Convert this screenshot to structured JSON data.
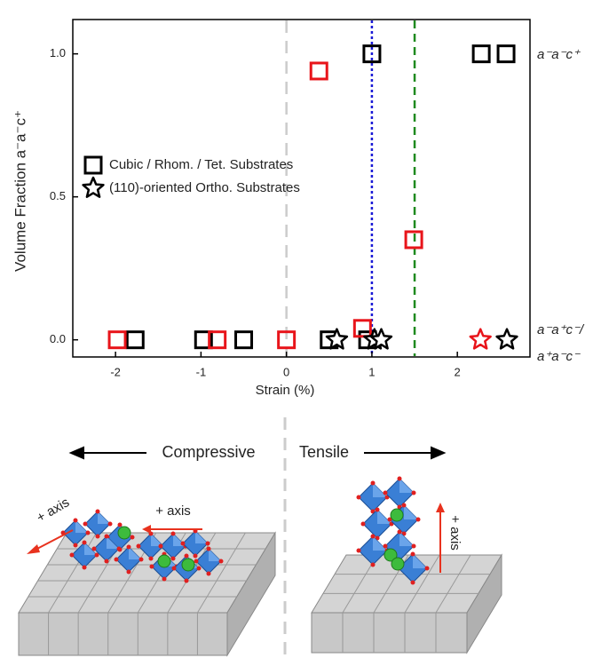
{
  "chart_data": {
    "type": "scatter",
    "x_label": "Strain (%)",
    "y_label": "Volume Fraction a⁻a⁻c⁺",
    "xlim": [
      -2.5,
      2.85
    ],
    "ylim": [
      -0.06,
      1.12
    ],
    "xticks": [
      -2,
      -1,
      0,
      1,
      2
    ],
    "yticks": [
      {
        "value": 0,
        "label": "0.0"
      },
      {
        "value": 0.5,
        "label": "0.5"
      },
      {
        "value": 1,
        "label": "1.0"
      }
    ],
    "series": [
      {
        "name": "Cubic / Rhom. / Tet. Substrates",
        "marker": "square",
        "color": "#000000",
        "x": [
          -1.77,
          -0.97,
          -0.5,
          0.5,
          0.95,
          1.0,
          2.28,
          2.57
        ],
        "values": [
          0,
          0,
          0,
          0,
          0,
          1.0,
          1.0,
          1.0
        ]
      },
      {
        "marker": "square",
        "color": "#e8141a",
        "x": [
          -1.98,
          -0.81,
          0,
          0.38,
          0.89,
          1.49
        ],
        "values": [
          0,
          0,
          0,
          0.94,
          0.04,
          0.35
        ]
      },
      {
        "name": "(110)-oriented Ortho. Substrates",
        "marker": "star",
        "color": "#000000",
        "x": [
          0.59,
          1.03,
          1.11,
          2.58
        ],
        "values": [
          0,
          0,
          0,
          0
        ]
      },
      {
        "marker": "star",
        "color": "#e8141a",
        "x": [
          2.27
        ],
        "values": [
          0
        ]
      }
    ],
    "reference_lines": [
      {
        "x": 0,
        "color": "#cccccc",
        "dash": "14,9"
      },
      {
        "x": 1.0,
        "color": "#1a1ad6",
        "dash": "3,3"
      },
      {
        "x": 1.5,
        "color": "#1f8a1f",
        "dash": "9,6"
      }
    ],
    "phase_labels": [
      "a⁻a⁻c⁺",
      "a⁻a⁺c⁻/",
      "a⁺a⁻c⁻"
    ]
  },
  "illustration": {
    "compressive": "Compressive",
    "tensile": "Tensile",
    "axis_labels": [
      "+ axis",
      "+ axis",
      "+ axis"
    ]
  }
}
